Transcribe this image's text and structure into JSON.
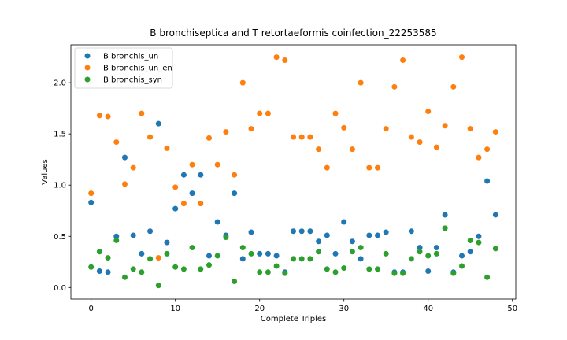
{
  "chart_data": {
    "type": "scatter",
    "title": "B bronchiseptica and T retortaeformis coinfection_22253585",
    "xlabel": "Complete Triples",
    "ylabel": "Values",
    "xlim": [
      -2.4,
      50.4
    ],
    "ylim": [
      -0.113,
      2.37
    ],
    "xticks": [
      0,
      10,
      20,
      30,
      40,
      50
    ],
    "yticks": [
      0.0,
      0.5,
      1.0,
      1.5,
      2.0
    ],
    "grid": false,
    "legend_position": "top-left",
    "series": [
      {
        "name": "B bronchis_un",
        "color": "#1f77b4",
        "x": [
          0,
          1,
          2,
          3,
          4,
          5,
          6,
          7,
          8,
          9,
          10,
          11,
          12,
          13,
          14,
          15,
          16,
          17,
          18,
          19,
          20,
          21,
          22,
          23,
          24,
          25,
          26,
          27,
          28,
          29,
          30,
          31,
          32,
          33,
          34,
          35,
          36,
          37,
          38,
          39,
          40,
          41,
          42,
          43,
          44,
          45,
          46,
          47,
          48
        ],
        "y": [
          0.83,
          0.16,
          0.15,
          0.5,
          1.27,
          0.51,
          0.33,
          0.55,
          1.6,
          0.44,
          0.77,
          1.1,
          0.92,
          1.1,
          0.31,
          0.64,
          0.51,
          0.92,
          0.28,
          0.54,
          0.33,
          0.33,
          0.31,
          0.15,
          0.55,
          0.55,
          0.55,
          0.45,
          0.51,
          0.33,
          0.64,
          0.45,
          0.28,
          0.51,
          0.51,
          0.54,
          0.15,
          0.15,
          0.55,
          0.39,
          0.16,
          0.39,
          0.71,
          0.15,
          0.31,
          0.35,
          0.5,
          1.04,
          0.71
        ]
      },
      {
        "name": "B bronchis_un_en",
        "color": "#ff7f0e",
        "x": [
          0,
          1,
          2,
          3,
          4,
          5,
          6,
          7,
          8,
          9,
          10,
          11,
          12,
          13,
          14,
          15,
          16,
          17,
          18,
          19,
          20,
          21,
          22,
          23,
          24,
          25,
          26,
          27,
          28,
          29,
          30,
          31,
          32,
          33,
          34,
          35,
          36,
          37,
          38,
          39,
          40,
          41,
          42,
          43,
          44,
          45,
          46,
          47,
          48
        ],
        "y": [
          0.92,
          1.68,
          1.67,
          1.42,
          1.01,
          1.17,
          1.7,
          1.47,
          0.29,
          1.36,
          0.98,
          0.82,
          1.2,
          0.82,
          1.46,
          1.2,
          1.52,
          1.1,
          2.0,
          1.55,
          1.7,
          1.7,
          2.25,
          2.22,
          1.47,
          1.47,
          1.47,
          1.35,
          1.17,
          1.7,
          1.56,
          1.35,
          2.0,
          1.17,
          1.17,
          1.55,
          1.96,
          2.22,
          1.47,
          1.42,
          1.72,
          1.37,
          1.58,
          1.96,
          2.25,
          1.55,
          1.27,
          1.35,
          1.52
        ]
      },
      {
        "name": "B bronchis_syn",
        "color": "#2ca02c",
        "x": [
          0,
          1,
          2,
          3,
          4,
          5,
          6,
          7,
          8,
          9,
          10,
          11,
          12,
          13,
          14,
          15,
          16,
          17,
          18,
          19,
          20,
          21,
          22,
          23,
          24,
          25,
          26,
          27,
          28,
          29,
          30,
          31,
          32,
          33,
          34,
          35,
          36,
          37,
          38,
          39,
          40,
          41,
          42,
          43,
          44,
          45,
          46,
          47,
          48
        ],
        "y": [
          0.2,
          0.35,
          0.29,
          0.46,
          0.1,
          0.18,
          0.15,
          0.28,
          0.02,
          0.33,
          0.2,
          0.18,
          0.39,
          0.18,
          0.22,
          0.31,
          0.49,
          0.06,
          0.39,
          0.33,
          0.15,
          0.15,
          0.21,
          0.14,
          0.28,
          0.28,
          0.28,
          0.35,
          0.18,
          0.15,
          0.19,
          0.35,
          0.39,
          0.18,
          0.18,
          0.33,
          0.14,
          0.14,
          0.28,
          0.35,
          0.31,
          0.33,
          0.58,
          0.14,
          0.21,
          0.46,
          0.44,
          0.1,
          0.38
        ]
      }
    ]
  }
}
